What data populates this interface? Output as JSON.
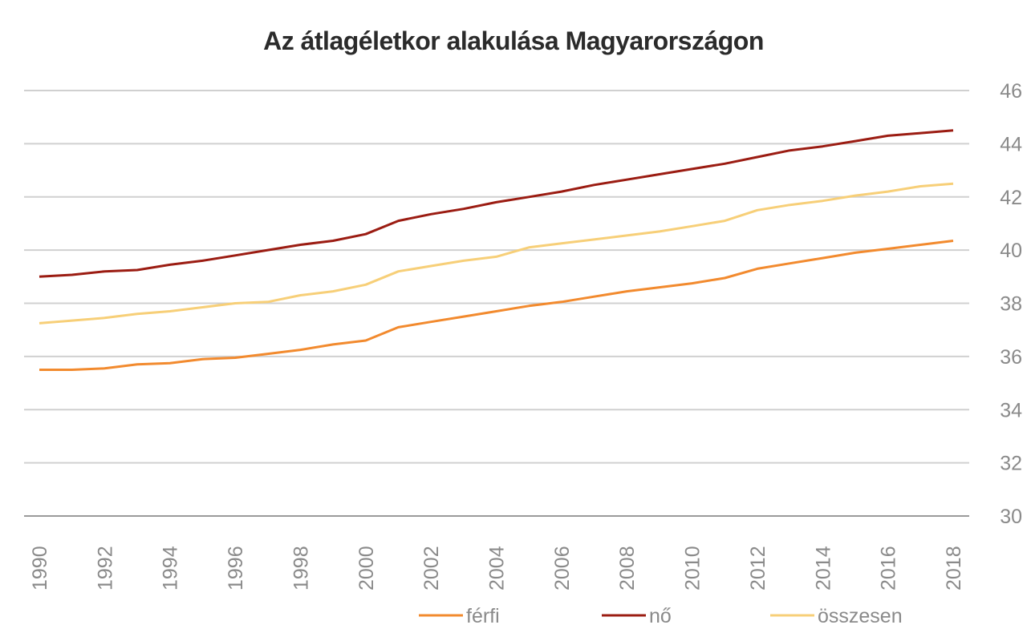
{
  "chart_data": {
    "type": "line",
    "title": "Az átlagéletkor alakulása Magyarországon",
    "xlabel": "",
    "ylabel": "",
    "ylim": [
      30,
      46
    ],
    "yticks": [
      30,
      32,
      34,
      36,
      38,
      40,
      42,
      44,
      46
    ],
    "y_axis_position": "right",
    "grid": true,
    "legend_position": "bottom",
    "x": [
      1990,
      1991,
      1992,
      1993,
      1994,
      1995,
      1996,
      1997,
      1998,
      1999,
      2000,
      2001,
      2002,
      2003,
      2004,
      2005,
      2006,
      2007,
      2008,
      2009,
      2010,
      2011,
      2012,
      2013,
      2014,
      2015,
      2016,
      2017,
      2018
    ],
    "xticks": [
      1990,
      1992,
      1994,
      1996,
      1998,
      2000,
      2002,
      2004,
      2006,
      2008,
      2010,
      2012,
      2014,
      2016,
      2018
    ],
    "series": [
      {
        "name": "férfi",
        "color": "#f28a2e",
        "values": [
          35.5,
          35.5,
          35.55,
          35.7,
          35.75,
          35.9,
          35.95,
          36.1,
          36.25,
          36.45,
          36.6,
          37.1,
          37.3,
          37.5,
          37.7,
          37.9,
          38.05,
          38.25,
          38.45,
          38.6,
          38.75,
          38.95,
          39.3,
          39.5,
          39.7,
          39.9,
          40.05,
          40.2,
          40.35
        ]
      },
      {
        "name": "nő",
        "color": "#9b1c12",
        "values": [
          39.0,
          39.07,
          39.2,
          39.25,
          39.45,
          39.6,
          39.8,
          40.0,
          40.2,
          40.35,
          40.6,
          41.1,
          41.35,
          41.55,
          41.8,
          42.0,
          42.2,
          42.45,
          42.65,
          42.85,
          43.05,
          43.25,
          43.5,
          43.75,
          43.9,
          44.1,
          44.3,
          44.4,
          44.5
        ]
      },
      {
        "name": "összesen",
        "color": "#f7cf78",
        "values": [
          37.25,
          37.35,
          37.45,
          37.6,
          37.7,
          37.85,
          38.0,
          38.05,
          38.3,
          38.45,
          38.7,
          39.2,
          39.4,
          39.6,
          39.75,
          40.1,
          40.25,
          40.4,
          40.55,
          40.7,
          40.9,
          41.1,
          41.5,
          41.7,
          41.85,
          42.05,
          42.2,
          42.4,
          42.5
        ]
      }
    ]
  }
}
